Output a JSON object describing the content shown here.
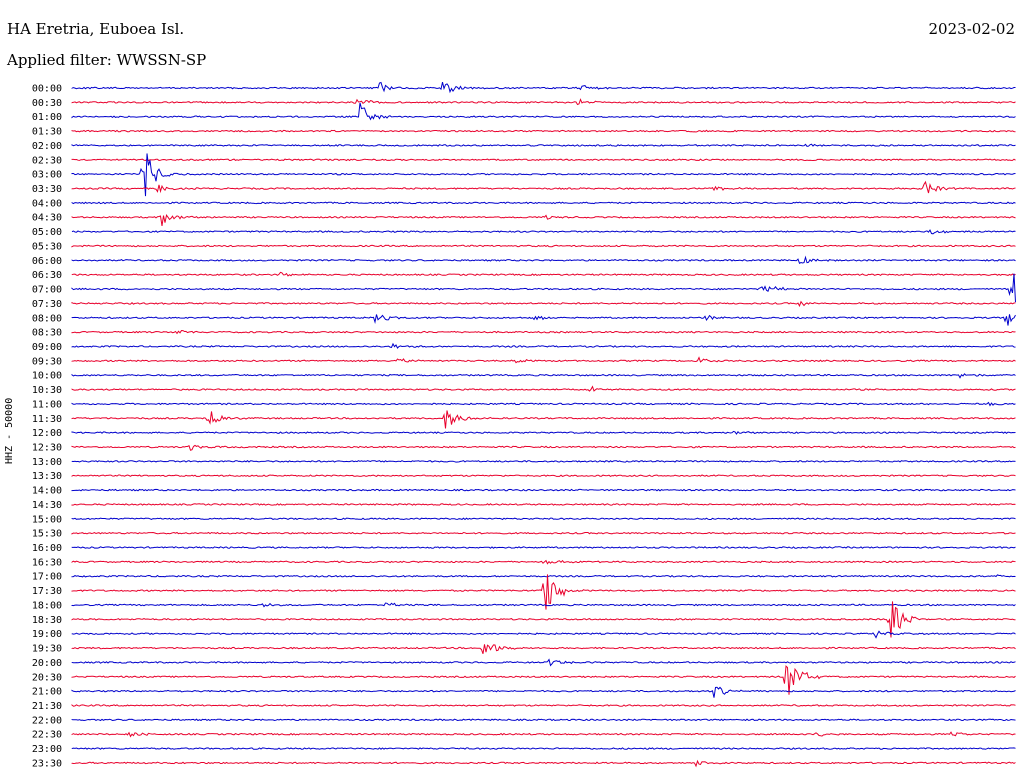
{
  "header": {
    "station": "HA Eretria, Euboea Isl.",
    "date": "2023-02-02",
    "filter": "Applied filter: WWSSN-SP",
    "channel": "HHZ - 50000"
  },
  "colors": {
    "even_hour": "#0000cc",
    "half_hour": "#e8002c"
  },
  "chart_data": {
    "type": "line",
    "title": "HA Eretria, Euboea Isl.",
    "subtitle": "Applied filter: WWSSN-SP",
    "ylabel": "HHZ - 50000",
    "traces": [
      {
        "label": "00:00",
        "color": "#0000cc",
        "events": [
          [
            0.325,
            6
          ],
          [
            0.39,
            10
          ],
          [
            0.535,
            4
          ]
        ]
      },
      {
        "label": "00:30",
        "color": "#e8002c",
        "events": [
          [
            0.3,
            5
          ],
          [
            0.535,
            4
          ]
        ]
      },
      {
        "label": "01:00",
        "color": "#0000cc",
        "events": [
          [
            0.305,
            16
          ]
        ]
      },
      {
        "label": "01:30",
        "color": "#e8002c",
        "events": [
          [
            0.65,
            2
          ]
        ]
      },
      {
        "label": "02:00",
        "color": "#0000cc",
        "events": [
          [
            0.77,
            3
          ]
        ]
      },
      {
        "label": "02:30",
        "color": "#e8002c",
        "events": []
      },
      {
        "label": "03:00",
        "color": "#0000cc",
        "events": [
          [
            0.075,
            30
          ]
        ]
      },
      {
        "label": "03:30",
        "color": "#e8002c",
        "events": [
          [
            0.09,
            4
          ],
          [
            0.68,
            3
          ],
          [
            0.9,
            10
          ]
        ]
      },
      {
        "label": "04:00",
        "color": "#0000cc",
        "events": []
      },
      {
        "label": "04:30",
        "color": "#e8002c",
        "events": [
          [
            0.095,
            9
          ],
          [
            0.5,
            2
          ]
        ]
      },
      {
        "label": "05:00",
        "color": "#0000cc",
        "events": [
          [
            0.91,
            3
          ]
        ]
      },
      {
        "label": "05:30",
        "color": "#e8002c",
        "events": []
      },
      {
        "label": "06:00",
        "color": "#0000cc",
        "events": [
          [
            0.77,
            5
          ]
        ]
      },
      {
        "label": "06:30",
        "color": "#e8002c",
        "events": [
          [
            0.22,
            3
          ]
        ]
      },
      {
        "label": "07:00",
        "color": "#0000cc",
        "events": [
          [
            0.73,
            7
          ],
          [
            0.995,
            22
          ]
        ]
      },
      {
        "label": "07:30",
        "color": "#e8002c",
        "events": [
          [
            0.77,
            3
          ]
        ]
      },
      {
        "label": "08:00",
        "color": "#0000cc",
        "events": [
          [
            0.32,
            6
          ],
          [
            0.49,
            4
          ],
          [
            0.67,
            3
          ],
          [
            0.99,
            14
          ]
        ]
      },
      {
        "label": "08:30",
        "color": "#e8002c",
        "events": [
          [
            0.11,
            3
          ]
        ]
      },
      {
        "label": "09:00",
        "color": "#0000cc",
        "events": [
          [
            0.34,
            3
          ]
        ]
      },
      {
        "label": "09:30",
        "color": "#e8002c",
        "events": [
          [
            0.34,
            5
          ],
          [
            0.47,
            3
          ],
          [
            0.66,
            4
          ]
        ]
      },
      {
        "label": "10:00",
        "color": "#0000cc",
        "events": [
          [
            0.94,
            3
          ]
        ]
      },
      {
        "label": "10:30",
        "color": "#e8002c",
        "events": [
          [
            0.55,
            3
          ]
        ]
      },
      {
        "label": "11:00",
        "color": "#0000cc",
        "events": [
          [
            0.97,
            3
          ]
        ]
      },
      {
        "label": "11:30",
        "color": "#e8002c",
        "events": [
          [
            0.145,
            9
          ],
          [
            0.395,
            13
          ]
        ]
      },
      {
        "label": "12:00",
        "color": "#0000cc",
        "events": [
          [
            0.7,
            2
          ]
        ]
      },
      {
        "label": "12:30",
        "color": "#e8002c",
        "events": [
          [
            0.125,
            4
          ]
        ]
      },
      {
        "label": "13:00",
        "color": "#0000cc",
        "events": []
      },
      {
        "label": "13:30",
        "color": "#e8002c",
        "events": []
      },
      {
        "label": "14:00",
        "color": "#0000cc",
        "events": []
      },
      {
        "label": "14:30",
        "color": "#e8002c",
        "events": []
      },
      {
        "label": "15:00",
        "color": "#0000cc",
        "events": []
      },
      {
        "label": "15:30",
        "color": "#e8002c",
        "events": []
      },
      {
        "label": "16:00",
        "color": "#0000cc",
        "events": []
      },
      {
        "label": "16:30",
        "color": "#e8002c",
        "events": [
          [
            0.5,
            4
          ]
        ]
      },
      {
        "label": "17:00",
        "color": "#0000cc",
        "events": [
          [
            0.98,
            2
          ]
        ]
      },
      {
        "label": "17:30",
        "color": "#e8002c",
        "events": [
          [
            0.5,
            30
          ]
        ]
      },
      {
        "label": "18:00",
        "color": "#0000cc",
        "events": [
          [
            0.2,
            3
          ],
          [
            0.33,
            3
          ]
        ]
      },
      {
        "label": "18:30",
        "color": "#e8002c",
        "events": [
          [
            0.865,
            30
          ]
        ]
      },
      {
        "label": "19:00",
        "color": "#0000cc",
        "events": [
          [
            0.85,
            4
          ]
        ]
      },
      {
        "label": "19:30",
        "color": "#e8002c",
        "events": [
          [
            0.435,
            12
          ],
          [
            1.0,
            4
          ]
        ]
      },
      {
        "label": "20:00",
        "color": "#0000cc",
        "events": [
          [
            0.505,
            4
          ]
        ]
      },
      {
        "label": "20:30",
        "color": "#e8002c",
        "events": [
          [
            0.755,
            30
          ]
        ]
      },
      {
        "label": "21:00",
        "color": "#0000cc",
        "events": [
          [
            0.68,
            7
          ]
        ]
      },
      {
        "label": "21:30",
        "color": "#e8002c",
        "events": []
      },
      {
        "label": "22:00",
        "color": "#0000cc",
        "events": []
      },
      {
        "label": "22:30",
        "color": "#e8002c",
        "events": [
          [
            0.06,
            3
          ],
          [
            0.79,
            3
          ],
          [
            0.93,
            3
          ]
        ]
      },
      {
        "label": "23:00",
        "color": "#0000cc",
        "events": []
      },
      {
        "label": "23:30",
        "color": "#e8002c",
        "events": [
          [
            0.66,
            3
          ]
        ]
      }
    ]
  }
}
